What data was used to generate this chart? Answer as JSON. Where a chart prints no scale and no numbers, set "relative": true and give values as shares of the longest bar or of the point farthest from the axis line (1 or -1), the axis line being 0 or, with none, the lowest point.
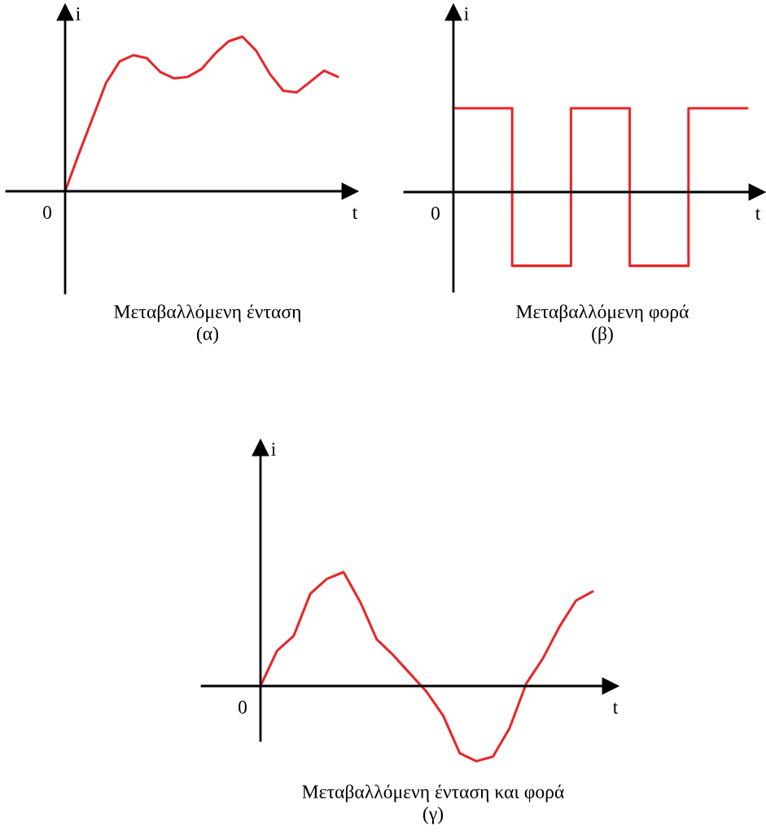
{
  "chart_data": [
    {
      "type": "line",
      "relative": true,
      "title": "Μεταβαλλόμενη ένταση",
      "subtitle": "(α)",
      "xlabel": "t",
      "ylabel": "i",
      "annotations": [
        "0"
      ],
      "color": "#e8262a",
      "categories": [
        null,
        null,
        null,
        null,
        null,
        null,
        null,
        null,
        null,
        null,
        null,
        null,
        null,
        null,
        null,
        null,
        null,
        null,
        null,
        null,
        null
      ],
      "values": [
        0,
        0.24,
        0.47,
        0.7,
        0.84,
        0.88,
        0.86,
        0.77,
        0.73,
        0.74,
        0.79,
        0.89,
        0.97,
        1.0,
        0.91,
        0.76,
        0.65,
        0.64,
        0.71,
        0.78,
        0.74
      ]
    },
    {
      "type": "step",
      "relative": true,
      "title": "Μεταβαλλόμενη φορά",
      "subtitle": "(β)",
      "xlabel": "t",
      "ylabel": "i",
      "annotations": [
        "0"
      ],
      "color": "#e8262a",
      "categories": [
        null,
        null,
        null,
        null,
        null,
        null
      ],
      "values": [
        1,
        -0.88,
        1,
        -0.88,
        1,
        1
      ]
    },
    {
      "type": "line",
      "relative": true,
      "title": "Μεταβαλλόμενη ένταση και φορά",
      "subtitle": "(γ)",
      "xlabel": "t",
      "ylabel": "i",
      "annotations": [
        "0"
      ],
      "color": "#e8262a",
      "categories": [
        null,
        null,
        null,
        null,
        null,
        null,
        null,
        null,
        null,
        null,
        null,
        null,
        null,
        null,
        null,
        null,
        null,
        null,
        null,
        null,
        null
      ],
      "values": [
        0,
        0.31,
        0.44,
        0.81,
        0.94,
        1.0,
        0.74,
        0.41,
        0.27,
        0.11,
        -0.05,
        -0.26,
        -0.59,
        -0.66,
        -0.62,
        -0.37,
        0.02,
        0.24,
        0.52,
        0.75,
        0.83
      ]
    }
  ]
}
